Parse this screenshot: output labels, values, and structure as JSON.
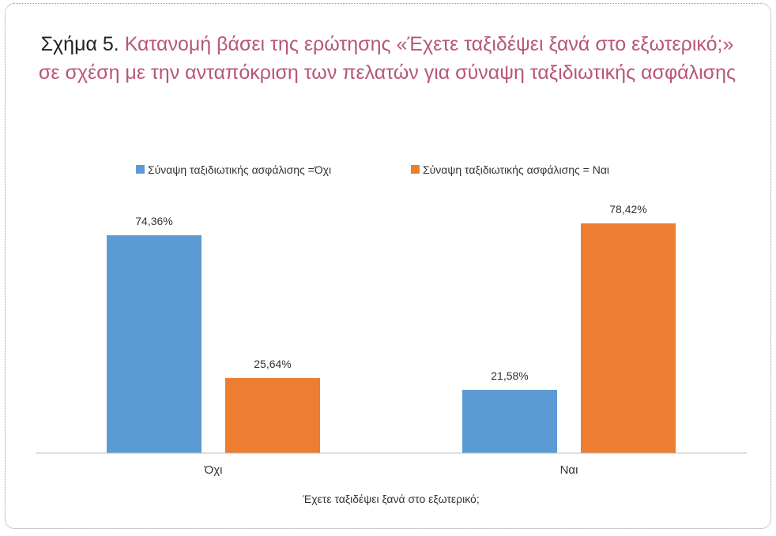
{
  "chart_data": {
    "type": "bar",
    "title_prefix": "Σχήμα 5.",
    "title": "Κατανομή βάσει της ερώτησης «Έχετε ταξιδέψει ξανά στο εξωτερικό;» σε σχέση με την ανταπόκριση των πελατών για σύναψη ταξιδιωτικής ασφάλισης",
    "xlabel": "Έχετε ταξιδέψει ξανά στο εξωτερικό;",
    "ylabel": "",
    "categories": [
      "Όχι",
      "Ναι"
    ],
    "series": [
      {
        "name": "Σύναψη ταξιδιωτικής ασφάλισης =Όχι",
        "values": [
          74.36,
          21.58
        ],
        "labels": [
          "74,36%",
          "21,58%"
        ],
        "color": "#5b9bd5"
      },
      {
        "name": "Σύναψη ταξιδιωτικής ασφάλισης = Ναι",
        "values": [
          25.64,
          78.42
        ],
        "labels": [
          "25,64%",
          "78,42%"
        ],
        "color": "#ed7d31"
      }
    ],
    "ylim": [
      0,
      90
    ],
    "grid": false,
    "legend": "top"
  }
}
